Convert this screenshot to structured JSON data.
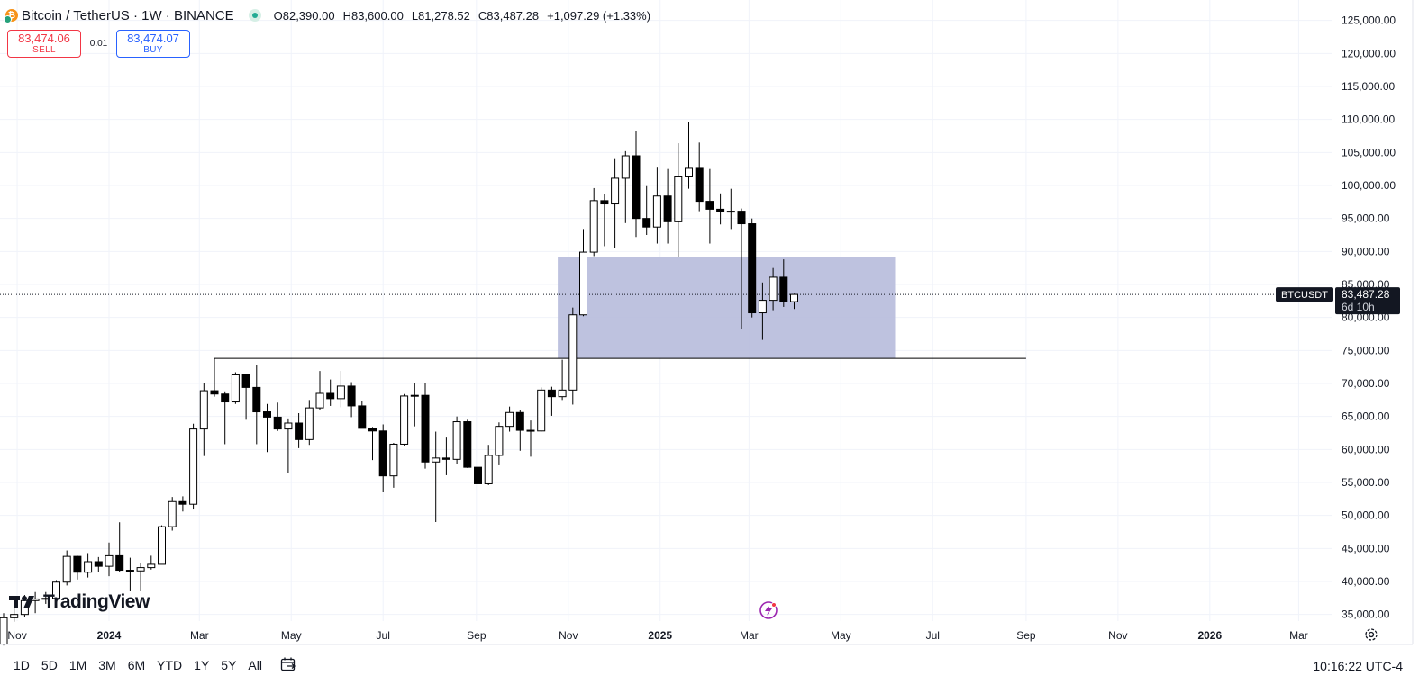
{
  "header": {
    "symbol": "Bitcoin / TetherUS · 1W · BINANCE",
    "open": "O82,390.00",
    "high": "H83,600.00",
    "low": "L81,278.52",
    "close": "C83,487.28",
    "change": "+1,097.29 (+1.33%)"
  },
  "trade": {
    "sell_price": "83,474.06",
    "sell_label": "SELL",
    "spread": "0.01",
    "buy_price": "83,474.07",
    "buy_label": "BUY"
  },
  "watermark": "TradingView",
  "ranges": [
    "1D",
    "5D",
    "1M",
    "3M",
    "6M",
    "YTD",
    "1Y",
    "5Y",
    "All"
  ],
  "clock": "10:16:22 UTC-4",
  "colors": {
    "bull": "#ffffff",
    "bear": "#000000",
    "zone": "#b7bbdc",
    "sell": "#f23645",
    "buy": "#2962ff"
  },
  "chart_data": {
    "type": "candlestick",
    "symbol": "BTCUSDT",
    "interval": "1W",
    "price_tag": "83,487.28",
    "countdown": "6d 10h",
    "ylim": [
      34000,
      127000
    ],
    "y_ticks": [
      35000,
      40000,
      45000,
      50000,
      55000,
      60000,
      65000,
      70000,
      75000,
      80000,
      85000,
      90000,
      95000,
      100000,
      105000,
      110000,
      115000,
      120000,
      125000
    ],
    "y_tick_labels": [
      "35,000.00",
      "40,000.00",
      "45,000.00",
      "50,000.00",
      "55,000.00",
      "60,000.00",
      "65,000.00",
      "70,000.00",
      "75,000.00",
      "80,000.00",
      "85,000.00",
      "90,000.00",
      "95,000.00",
      "100,000.00",
      "105,000.00",
      "110,000.00",
      "115,000.00",
      "120,000.00",
      "125,000.00"
    ],
    "x_range": [
      "2023-10-23",
      "2026-03-16"
    ],
    "x_ticks": [
      {
        "date": "2023-11-01",
        "label": "Nov"
      },
      {
        "date": "2024-01-01",
        "label": "2024",
        "bold": true
      },
      {
        "date": "2024-03-01",
        "label": "Mar"
      },
      {
        "date": "2024-05-01",
        "label": "May"
      },
      {
        "date": "2024-07-01",
        "label": "Jul"
      },
      {
        "date": "2024-09-01",
        "label": "Sep"
      },
      {
        "date": "2024-11-01",
        "label": "Nov"
      },
      {
        "date": "2025-01-01",
        "label": "2025",
        "bold": true
      },
      {
        "date": "2025-03-01",
        "label": "Mar"
      },
      {
        "date": "2025-05-01",
        "label": "May"
      },
      {
        "date": "2025-07-01",
        "label": "Jul"
      },
      {
        "date": "2025-09-01",
        "label": "Sep"
      },
      {
        "date": "2025-11-01",
        "label": "Nov"
      },
      {
        "date": "2026-01-01",
        "label": "2026",
        "bold": true
      },
      {
        "date": "2026-03-01",
        "label": "Mar"
      }
    ],
    "grid": true,
    "last_price_line": 83487.28,
    "zone": {
      "from": "2024-10-28",
      "to": "2025-06-09",
      "low": 73800,
      "high": 89100
    },
    "level_line": {
      "from": "2024-03-11",
      "to": "2025-09-01",
      "price": 73800
    },
    "candles": [
      {
        "t": "2023-10-23",
        "o": 30500,
        "h": 35200,
        "l": 30300,
        "c": 34500
      },
      {
        "t": "2023-10-30",
        "o": 34500,
        "h": 35900,
        "l": 33900,
        "c": 35000
      },
      {
        "t": "2023-11-06",
        "o": 35000,
        "h": 37950,
        "l": 34600,
        "c": 37100
      },
      {
        "t": "2023-11-13",
        "o": 37100,
        "h": 38400,
        "l": 35200,
        "c": 37350
      },
      {
        "t": "2023-11-20",
        "o": 37350,
        "h": 38400,
        "l": 36600,
        "c": 37440
      },
      {
        "t": "2023-11-27",
        "o": 37440,
        "h": 40200,
        "l": 37000,
        "c": 39900
      },
      {
        "t": "2023-12-04",
        "o": 39900,
        "h": 44700,
        "l": 39400,
        "c": 43800
      },
      {
        "t": "2023-12-11",
        "o": 43800,
        "h": 43900,
        "l": 40300,
        "c": 41400
      },
      {
        "t": "2023-12-18",
        "o": 41400,
        "h": 44300,
        "l": 40600,
        "c": 43000
      },
      {
        "t": "2023-12-25",
        "o": 43000,
        "h": 43700,
        "l": 41400,
        "c": 42300
      },
      {
        "t": "2024-01-01",
        "o": 42300,
        "h": 45900,
        "l": 40800,
        "c": 43900
      },
      {
        "t": "2024-01-08",
        "o": 43900,
        "h": 48970,
        "l": 41500,
        "c": 41700
      },
      {
        "t": "2024-01-15",
        "o": 41700,
        "h": 43600,
        "l": 38500,
        "c": 41600
      },
      {
        "t": "2024-01-22",
        "o": 41600,
        "h": 42800,
        "l": 38500,
        "c": 42100
      },
      {
        "t": "2024-01-29",
        "o": 42100,
        "h": 43900,
        "l": 41800,
        "c": 42600
      },
      {
        "t": "2024-02-05",
        "o": 42600,
        "h": 48500,
        "l": 42600,
        "c": 48300
      },
      {
        "t": "2024-02-12",
        "o": 48300,
        "h": 52800,
        "l": 47700,
        "c": 52100
      },
      {
        "t": "2024-02-19",
        "o": 52100,
        "h": 52900,
        "l": 50600,
        "c": 51700
      },
      {
        "t": "2024-02-26",
        "o": 51700,
        "h": 63900,
        "l": 50900,
        "c": 63100
      },
      {
        "t": "2024-03-04",
        "o": 63100,
        "h": 70000,
        "l": 59000,
        "c": 68900
      },
      {
        "t": "2024-03-11",
        "o": 68900,
        "h": 73700,
        "l": 68000,
        "c": 68400
      },
      {
        "t": "2024-03-18",
        "o": 68400,
        "h": 68800,
        "l": 60800,
        "c": 67200
      },
      {
        "t": "2024-03-25",
        "o": 67200,
        "h": 71700,
        "l": 66900,
        "c": 71300
      },
      {
        "t": "2024-04-01",
        "o": 71300,
        "h": 71300,
        "l": 64500,
        "c": 69400
      },
      {
        "t": "2024-04-08",
        "o": 69400,
        "h": 72800,
        "l": 60800,
        "c": 65700
      },
      {
        "t": "2024-04-15",
        "o": 65700,
        "h": 66900,
        "l": 59600,
        "c": 64900
      },
      {
        "t": "2024-04-22",
        "o": 64900,
        "h": 67100,
        "l": 62800,
        "c": 63100
      },
      {
        "t": "2024-04-29",
        "o": 63100,
        "h": 64700,
        "l": 56500,
        "c": 64000
      },
      {
        "t": "2024-05-06",
        "o": 64000,
        "h": 65500,
        "l": 60200,
        "c": 61500
      },
      {
        "t": "2024-05-13",
        "o": 61500,
        "h": 67500,
        "l": 60700,
        "c": 66300
      },
      {
        "t": "2024-05-20",
        "o": 66300,
        "h": 71900,
        "l": 66000,
        "c": 68500
      },
      {
        "t": "2024-05-27",
        "o": 68500,
        "h": 70600,
        "l": 66600,
        "c": 67700
      },
      {
        "t": "2024-06-03",
        "o": 67700,
        "h": 71900,
        "l": 66400,
        "c": 69600
      },
      {
        "t": "2024-06-10",
        "o": 69600,
        "h": 70200,
        "l": 64900,
        "c": 66600
      },
      {
        "t": "2024-06-17",
        "o": 66600,
        "h": 67300,
        "l": 63200,
        "c": 63200
      },
      {
        "t": "2024-06-24",
        "o": 63200,
        "h": 63400,
        "l": 58400,
        "c": 62800
      },
      {
        "t": "2024-07-01",
        "o": 62800,
        "h": 63800,
        "l": 53500,
        "c": 56000
      },
      {
        "t": "2024-07-08",
        "o": 56000,
        "h": 61000,
        "l": 54200,
        "c": 60800
      },
      {
        "t": "2024-07-15",
        "o": 60800,
        "h": 68400,
        "l": 60600,
        "c": 68100
      },
      {
        "t": "2024-07-22",
        "o": 68100,
        "h": 70000,
        "l": 63500,
        "c": 68200
      },
      {
        "t": "2024-07-29",
        "o": 68200,
        "h": 70100,
        "l": 57100,
        "c": 58100
      },
      {
        "t": "2024-08-05",
        "o": 58100,
        "h": 62700,
        "l": 49000,
        "c": 58700
      },
      {
        "t": "2024-08-12",
        "o": 58700,
        "h": 61800,
        "l": 56100,
        "c": 58500
      },
      {
        "t": "2024-08-19",
        "o": 58500,
        "h": 65000,
        "l": 57800,
        "c": 64200
      },
      {
        "t": "2024-08-26",
        "o": 64200,
        "h": 64500,
        "l": 57200,
        "c": 57300
      },
      {
        "t": "2024-09-02",
        "o": 57300,
        "h": 59800,
        "l": 52500,
        "c": 54800
      },
      {
        "t": "2024-09-09",
        "o": 54800,
        "h": 60700,
        "l": 54600,
        "c": 59100
      },
      {
        "t": "2024-09-16",
        "o": 59100,
        "h": 64100,
        "l": 57600,
        "c": 63500
      },
      {
        "t": "2024-09-23",
        "o": 63500,
        "h": 66500,
        "l": 62700,
        "c": 65600
      },
      {
        "t": "2024-09-30",
        "o": 65600,
        "h": 66000,
        "l": 59800,
        "c": 62900
      },
      {
        "t": "2024-10-07",
        "o": 62900,
        "h": 64400,
        "l": 58900,
        "c": 62800
      },
      {
        "t": "2024-10-14",
        "o": 62800,
        "h": 69400,
        "l": 62700,
        "c": 69000
      },
      {
        "t": "2024-10-21",
        "o": 69000,
        "h": 69500,
        "l": 65100,
        "c": 68000
      },
      {
        "t": "2024-10-28",
        "o": 68000,
        "h": 73600,
        "l": 67500,
        "c": 69000
      },
      {
        "t": "2024-11-04",
        "o": 69000,
        "h": 81500,
        "l": 66800,
        "c": 80400
      },
      {
        "t": "2024-11-11",
        "o": 80400,
        "h": 93400,
        "l": 80200,
        "c": 89900
      },
      {
        "t": "2024-11-18",
        "o": 89900,
        "h": 99600,
        "l": 89300,
        "c": 97700
      },
      {
        "t": "2024-11-25",
        "o": 97700,
        "h": 98700,
        "l": 90800,
        "c": 97200
      },
      {
        "t": "2024-12-02",
        "o": 97200,
        "h": 104000,
        "l": 90500,
        "c": 101100
      },
      {
        "t": "2024-12-09",
        "o": 101100,
        "h": 105200,
        "l": 94300,
        "c": 104500
      },
      {
        "t": "2024-12-16",
        "o": 104500,
        "h": 108300,
        "l": 92200,
        "c": 95000
      },
      {
        "t": "2024-12-23",
        "o": 95000,
        "h": 99900,
        "l": 92500,
        "c": 93700
      },
      {
        "t": "2024-12-30",
        "o": 93700,
        "h": 102700,
        "l": 91200,
        "c": 98400
      },
      {
        "t": "2025-01-06",
        "o": 98400,
        "h": 102500,
        "l": 91200,
        "c": 94500
      },
      {
        "t": "2025-01-13",
        "o": 94500,
        "h": 106400,
        "l": 89200,
        "c": 101300
      },
      {
        "t": "2025-01-20",
        "o": 101300,
        "h": 109600,
        "l": 99500,
        "c": 102600
      },
      {
        "t": "2025-01-27",
        "o": 102600,
        "h": 106500,
        "l": 96100,
        "c": 97600
      },
      {
        "t": "2025-02-03",
        "o": 97600,
        "h": 102500,
        "l": 91200,
        "c": 96400
      },
      {
        "t": "2025-02-10",
        "o": 96400,
        "h": 98800,
        "l": 94100,
        "c": 96100
      },
      {
        "t": "2025-02-17",
        "o": 96100,
        "h": 99500,
        "l": 93400,
        "c": 96100
      },
      {
        "t": "2025-02-24",
        "o": 96100,
        "h": 96500,
        "l": 78200,
        "c": 94200
      },
      {
        "t": "2025-03-03",
        "o": 94200,
        "h": 95000,
        "l": 80000,
        "c": 80700
      },
      {
        "t": "2025-03-10",
        "o": 80700,
        "h": 85300,
        "l": 76600,
        "c": 82600
      },
      {
        "t": "2025-03-17",
        "o": 82600,
        "h": 87500,
        "l": 81100,
        "c": 86100
      },
      {
        "t": "2025-03-24",
        "o": 86100,
        "h": 88800,
        "l": 81600,
        "c": 82400
      },
      {
        "t": "2025-03-31",
        "o": 82390,
        "h": 83600,
        "l": 81278.52,
        "c": 83487.28
      }
    ]
  }
}
